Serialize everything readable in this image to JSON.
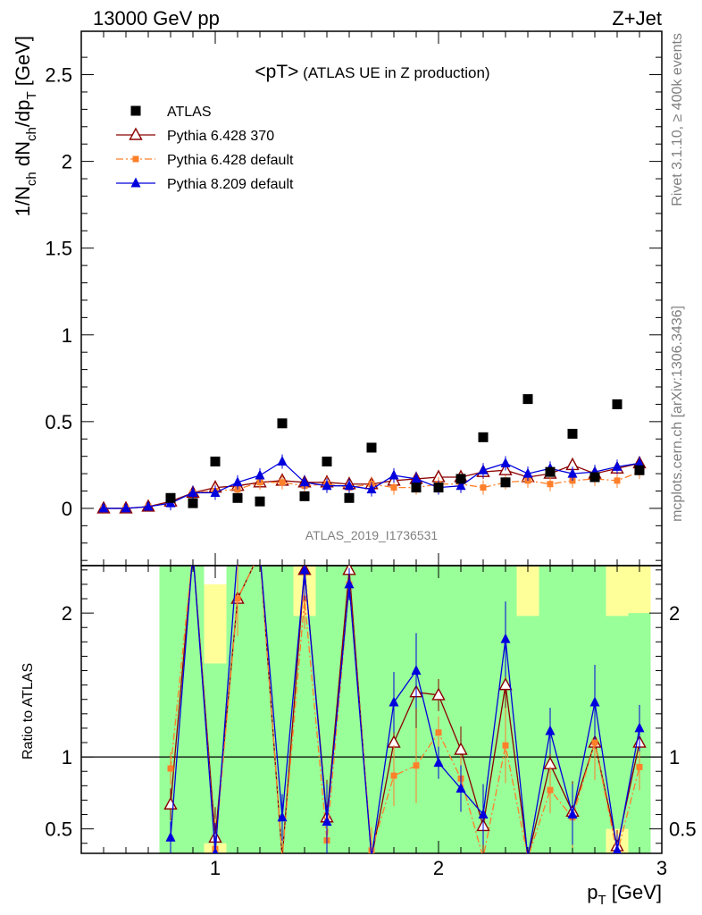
{
  "header": {
    "left": "13000 GeV pp",
    "right": "Z+Jet"
  },
  "side_text": {
    "top": "Rivet 3.1.10, ≥ 400k events",
    "bottom": "mcplots.cern.ch [arXiv:1306.3436]"
  },
  "plot_title": {
    "main": "<pT>",
    "sub": " (ATLAS UE in Z production)"
  },
  "watermark": "ATLAS_2019_I1736531",
  "colors": {
    "atlas": "#000000",
    "p6_370": "#8b0000",
    "p6_default": "#ff7f2a",
    "p8_default": "#0000dd",
    "band_green": "#99ff99",
    "band_yellow": "#ffff99"
  },
  "chart_data": [
    {
      "type": "scatter",
      "panel": "main",
      "xlabel": "",
      "ylabel_parts": [
        "1/N",
        "ch",
        " dN",
        "ch",
        "/dp",
        "T",
        " [GeV]"
      ],
      "xlim": [
        0.4,
        3.0
      ],
      "ylim": [
        -0.33,
        2.75
      ],
      "y_ticks": [
        0,
        0.5,
        1,
        1.5,
        2,
        2.5
      ],
      "y_tick_labels": [
        "0",
        "0.5",
        "1",
        "1.5",
        "2",
        "2.5"
      ],
      "x": [
        0.5,
        0.6,
        0.7,
        0.8,
        0.9,
        1.0,
        1.1,
        1.2,
        1.3,
        1.4,
        1.5,
        1.6,
        1.7,
        1.8,
        1.9,
        2.0,
        2.1,
        2.2,
        2.3,
        2.4,
        2.5,
        2.6,
        2.7,
        2.8,
        2.9
      ],
      "legend_position": "top-left",
      "series": [
        {
          "name": "ATLAS",
          "marker": "square",
          "color_key": "atlas",
          "values": [
            null,
            null,
            null,
            0.06,
            0.03,
            0.27,
            0.06,
            0.04,
            0.49,
            0.07,
            0.27,
            0.06,
            0.35,
            null,
            0.12,
            0.12,
            0.17,
            0.41,
            0.15,
            0.63,
            0.21,
            0.43,
            0.18,
            0.6,
            0.22
          ]
        },
        {
          "name": "Pythia 6.428 370",
          "marker": "open-triangle",
          "color_key": "p6_370",
          "line": "solid",
          "values": [
            0.0,
            0.0,
            0.01,
            0.04,
            0.09,
            0.12,
            0.13,
            0.15,
            0.16,
            0.15,
            0.15,
            0.14,
            0.14,
            0.16,
            0.17,
            0.18,
            0.18,
            0.21,
            0.22,
            0.18,
            0.2,
            0.25,
            0.2,
            0.23,
            0.26
          ]
        },
        {
          "name": "Pythia 6.428 default",
          "marker": "filled-square-small",
          "color_key": "p6_default",
          "line": "dashdot",
          "values": [
            0.0,
            0.0,
            0.01,
            0.03,
            0.09,
            0.1,
            0.11,
            0.15,
            0.15,
            0.13,
            0.14,
            0.12,
            0.14,
            0.12,
            0.12,
            0.14,
            0.14,
            0.12,
            0.15,
            0.16,
            0.14,
            0.16,
            0.17,
            0.16,
            0.21
          ]
        },
        {
          "name": "Pythia 8.209 default",
          "marker": "filled-triangle",
          "color_key": "p8_default",
          "line": "solid",
          "values": [
            0.0,
            0.0,
            0.01,
            0.03,
            0.09,
            0.09,
            0.15,
            0.19,
            0.27,
            0.15,
            0.13,
            0.13,
            0.11,
            0.19,
            0.17,
            0.12,
            0.13,
            0.22,
            0.26,
            0.2,
            0.23,
            0.2,
            0.21,
            0.24,
            0.26
          ]
        }
      ]
    },
    {
      "type": "line",
      "panel": "ratio",
      "ylabel": "Ratio to ATLAS",
      "xlabel_parts": [
        "p",
        "T",
        " [GeV]"
      ],
      "xlim": [
        0.4,
        3.0
      ],
      "ylim": [
        0.33,
        2.33
      ],
      "x_ticks": [
        1,
        2,
        3
      ],
      "x_tick_labels": [
        "1",
        "2",
        "3"
      ],
      "y_ticks": [
        0.5,
        1,
        2
      ],
      "y_tick_labels": [
        "0.5",
        "1",
        "2"
      ],
      "x": [
        0.8,
        0.9,
        1.0,
        1.1,
        1.2,
        1.3,
        1.4,
        1.5,
        1.6,
        1.7,
        1.8,
        1.9,
        2.0,
        2.1,
        2.2,
        2.3,
        2.4,
        2.5,
        2.6,
        2.7,
        2.8,
        2.9
      ],
      "series": [
        {
          "name": "Pythia 6.428 370",
          "color_key": "p6_370",
          "values": [
            0.67,
            3.0,
            0.44,
            2.1,
            3.0,
            0.3,
            2.3,
            0.58,
            2.3,
            0.3,
            1.1,
            1.45,
            1.43,
            1.05,
            0.52,
            1.5,
            0.3,
            0.95,
            0.62,
            1.1,
            0.38,
            1.1
          ]
        },
        {
          "name": "Pythia 6.428 default",
          "color_key": "p6_default",
          "values": [
            0.92,
            2.9,
            0.36,
            2.1,
            3.0,
            0.3,
            2.1,
            0.42,
            2.2,
            0.35,
            0.87,
            0.94,
            1.17,
            0.85,
            0.3,
            1.08,
            0.3,
            0.77,
            0.58,
            1.1,
            0.33,
            0.93
          ]
        },
        {
          "name": "Pythia 8.209 default",
          "color_key": "p8_default",
          "values": [
            0.44,
            3.0,
            0.33,
            2.5,
            3.0,
            0.58,
            2.3,
            0.55,
            2.2,
            0.3,
            1.38,
            1.6,
            0.96,
            0.78,
            0.6,
            1.82,
            0.3,
            1.18,
            0.6,
            1.38,
            0.35,
            1.2
          ]
        }
      ],
      "uncertainty_bands": {
        "x_ranges": [
          [
            0.75,
            0.85
          ],
          [
            0.85,
            0.95
          ],
          [
            0.95,
            1.05
          ],
          [
            1.05,
            1.15
          ],
          [
            1.15,
            1.25
          ],
          [
            1.25,
            1.35
          ],
          [
            1.35,
            1.45
          ],
          [
            1.45,
            1.55
          ],
          [
            1.55,
            1.65
          ],
          [
            1.65,
            1.75
          ],
          [
            1.75,
            1.85
          ],
          [
            1.85,
            1.95
          ],
          [
            1.95,
            2.05
          ],
          [
            2.05,
            2.15
          ],
          [
            2.15,
            2.25
          ],
          [
            2.25,
            2.35
          ],
          [
            2.35,
            2.45
          ],
          [
            2.45,
            2.55
          ],
          [
            2.55,
            2.65
          ],
          [
            2.65,
            2.75
          ],
          [
            2.75,
            2.85
          ],
          [
            2.85,
            2.95
          ]
        ],
        "yellow": [
          [
            0.33,
            2.33
          ],
          [
            0.33,
            2.33
          ],
          [
            0.33,
            2.2
          ],
          [
            0.33,
            2.33
          ],
          [
            0.33,
            2.33
          ],
          [
            0.33,
            2.33
          ],
          [
            0.33,
            2.33
          ],
          [
            0.33,
            2.33
          ],
          [
            0.33,
            2.33
          ],
          [
            0.33,
            2.33
          ],
          [
            0.33,
            2.33
          ],
          [
            0.33,
            2.33
          ],
          [
            0.33,
            2.33
          ],
          [
            0.33,
            2.33
          ],
          [
            0.36,
            2.33
          ],
          [
            0.33,
            2.33
          ],
          [
            0.33,
            2.33
          ],
          [
            0.33,
            2.33
          ],
          [
            0.33,
            2.33
          ],
          [
            0.33,
            2.33
          ],
          [
            0.33,
            2.33
          ],
          [
            0.33,
            2.33
          ]
        ],
        "green": [
          [
            0.33,
            2.33
          ],
          [
            0.33,
            2.33
          ],
          [
            0.4,
            1.65
          ],
          [
            0.33,
            2.33
          ],
          [
            0.33,
            2.33
          ],
          [
            0.33,
            2.33
          ],
          [
            0.33,
            1.98
          ],
          [
            0.33,
            2.33
          ],
          [
            0.33,
            2.33
          ],
          [
            0.33,
            2.33
          ],
          [
            0.33,
            2.33
          ],
          [
            0.33,
            2.33
          ],
          [
            0.33,
            2.33
          ],
          [
            0.33,
            2.33
          ],
          [
            0.33,
            2.33
          ],
          [
            0.33,
            2.33
          ],
          [
            0.33,
            1.98
          ],
          [
            0.33,
            2.33
          ],
          [
            0.33,
            2.33
          ],
          [
            0.33,
            2.33
          ],
          [
            0.5,
            1.98
          ],
          [
            0.33,
            2.0
          ]
        ]
      }
    }
  ]
}
